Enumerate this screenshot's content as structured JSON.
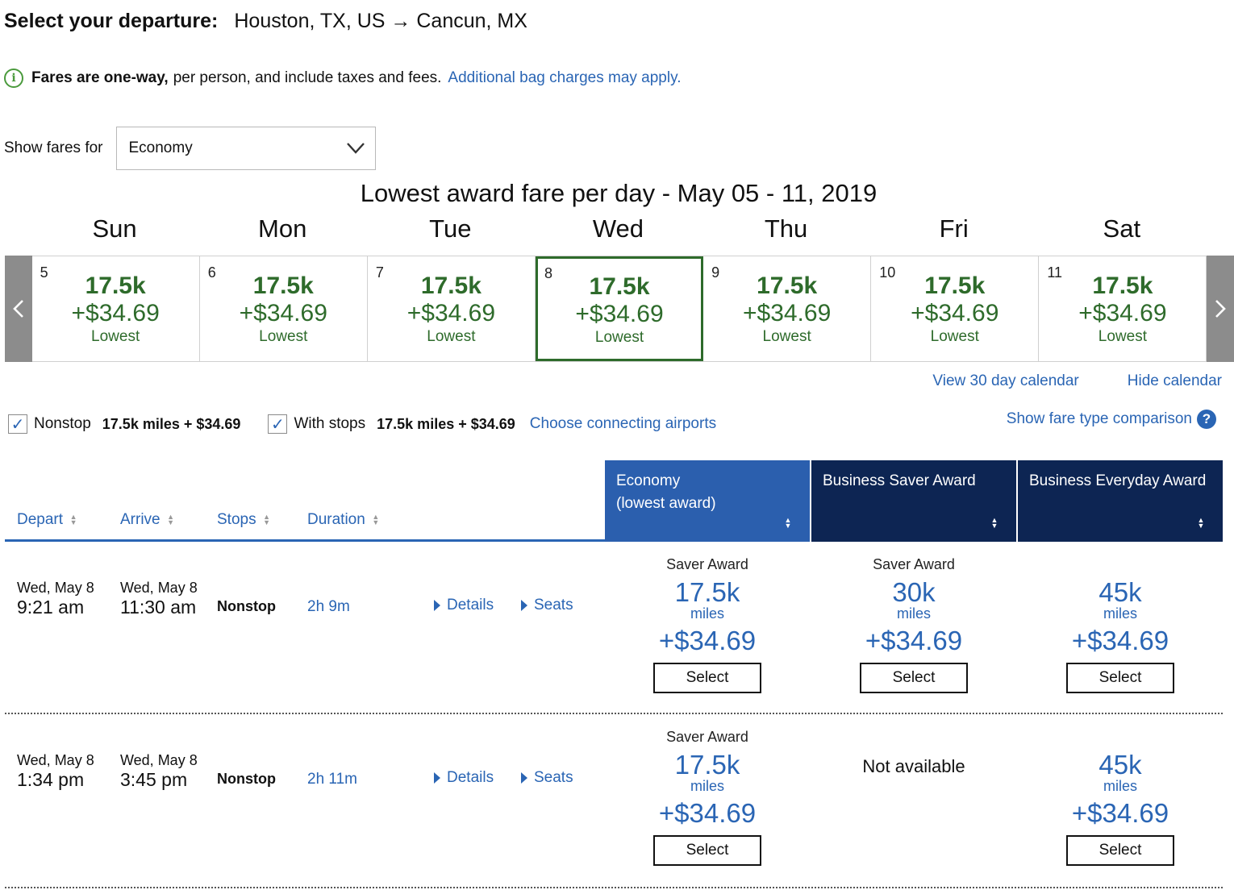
{
  "header": {
    "label": "Select your departure:",
    "route": "Houston, TX, US → Cancun, MX"
  },
  "notice": {
    "bold": "Fares are one-way,",
    "text": "per person, and include taxes and fees.",
    "link": "Additional bag charges may apply."
  },
  "fares_for": {
    "label": "Show fares for",
    "selected": "Economy"
  },
  "calendar": {
    "title": "Lowest award fare per day - May 05 - 11, 2019",
    "day_names": [
      "Sun",
      "Mon",
      "Tue",
      "Wed",
      "Thu",
      "Fri",
      "Sat"
    ],
    "days": [
      {
        "num": "5",
        "miles": "17.5k",
        "price": "+$34.69",
        "label": "Lowest"
      },
      {
        "num": "6",
        "miles": "17.5k",
        "price": "+$34.69",
        "label": "Lowest"
      },
      {
        "num": "7",
        "miles": "17.5k",
        "price": "+$34.69",
        "label": "Lowest"
      },
      {
        "num": "8",
        "miles": "17.5k",
        "price": "+$34.69",
        "label": "Lowest"
      },
      {
        "num": "9",
        "miles": "17.5k",
        "price": "+$34.69",
        "label": "Lowest"
      },
      {
        "num": "10",
        "miles": "17.5k",
        "price": "+$34.69",
        "label": "Lowest"
      },
      {
        "num": "11",
        "miles": "17.5k",
        "price": "+$34.69",
        "label": "Lowest"
      }
    ],
    "view_30": "View 30 day calendar",
    "hide": "Hide calendar"
  },
  "filters": {
    "nonstop_label": "Nonstop",
    "nonstop_price": "17.5k miles + $34.69",
    "stops_label": "With stops",
    "stops_price": "17.5k miles + $34.69",
    "connecting": "Choose connecting airports",
    "compare": "Show fare type comparison"
  },
  "table": {
    "cols": {
      "depart": "Depart",
      "arrive": "Arrive",
      "stops": "Stops",
      "duration": "Duration"
    },
    "fare_cols": {
      "economy_1": "Economy",
      "economy_2": "(lowest award)",
      "business_saver": "Business Saver Award",
      "business_everyday": "Business Everyday Award"
    },
    "rows": [
      {
        "dep_date": "Wed, May 8",
        "dep_time": "9:21 am",
        "arr_date": "Wed, May 8",
        "arr_time": "11:30 am",
        "stops": "Nonstop",
        "duration": "2h 9m",
        "details": "Details",
        "seats": "Seats",
        "econ": {
          "type": "Saver Award",
          "miles": "17.5k",
          "mlbl": "miles",
          "price": "+$34.69",
          "btn": "Select"
        },
        "bsa": {
          "type": "Saver Award",
          "miles": "30k",
          "mlbl": "miles",
          "price": "+$34.69",
          "btn": "Select"
        },
        "bea": {
          "type": "",
          "miles": "45k",
          "mlbl": "miles",
          "price": "+$34.69",
          "btn": "Select"
        }
      },
      {
        "dep_date": "Wed, May 8",
        "dep_time": "1:34 pm",
        "arr_date": "Wed, May 8",
        "arr_time": "3:45 pm",
        "stops": "Nonstop",
        "duration": "2h 11m",
        "details": "Details",
        "seats": "Seats",
        "econ": {
          "type": "Saver Award",
          "miles": "17.5k",
          "mlbl": "miles",
          "price": "+$34.69",
          "btn": "Select"
        },
        "bsa": {
          "na": "Not available"
        },
        "bea": {
          "type": "",
          "miles": "45k",
          "mlbl": "miles",
          "price": "+$34.69",
          "btn": "Select"
        }
      }
    ]
  },
  "colors": {
    "link_blue": "#2a65b4",
    "fare_green": "#2e6b2b",
    "economy_header": "#2b5fae",
    "business_header": "#0d2553"
  },
  "icons": {
    "info": "info-icon",
    "dropdown": "chevron-down-icon",
    "prev": "chevron-left-icon",
    "next": "chevron-right-icon",
    "help": "question-icon"
  }
}
